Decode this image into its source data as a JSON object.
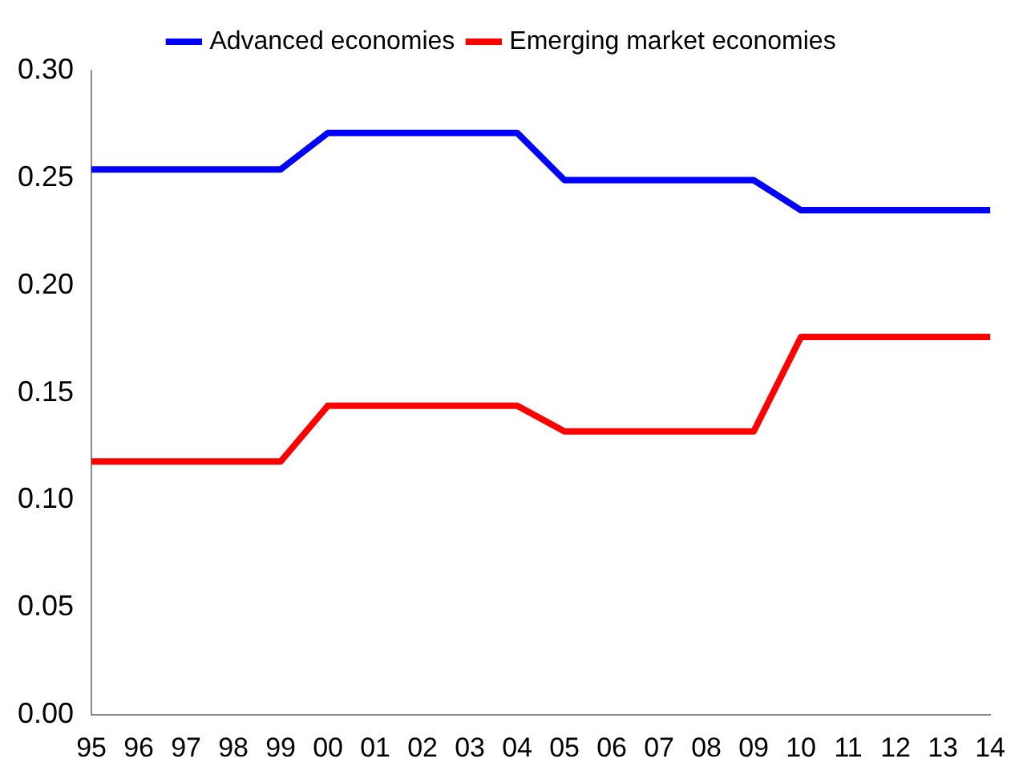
{
  "chart_data": {
    "type": "line",
    "categories": [
      "95",
      "96",
      "97",
      "98",
      "99",
      "00",
      "01",
      "02",
      "03",
      "04",
      "05",
      "06",
      "07",
      "08",
      "09",
      "10",
      "11",
      "12",
      "13",
      "14"
    ],
    "series": [
      {
        "name": "Advanced economies",
        "color": "#0000ff",
        "values": [
          0.254,
          0.254,
          0.254,
          0.254,
          0.254,
          0.271,
          0.271,
          0.271,
          0.271,
          0.271,
          0.249,
          0.249,
          0.249,
          0.249,
          0.249,
          0.235,
          0.235,
          0.235,
          0.235,
          0.235
        ]
      },
      {
        "name": "Emerging market economies",
        "color": "#ff0000",
        "values": [
          0.118,
          0.118,
          0.118,
          0.118,
          0.118,
          0.144,
          0.144,
          0.144,
          0.144,
          0.144,
          0.132,
          0.132,
          0.132,
          0.132,
          0.132,
          0.176,
          0.176,
          0.176,
          0.176,
          0.176
        ]
      }
    ],
    "ylim": [
      0,
      0.3
    ],
    "yticks": [
      {
        "value": 0,
        "label": "0.00"
      },
      {
        "value": 0.05,
        "label": "0.05"
      },
      {
        "value": 0.1,
        "label": "0.10"
      },
      {
        "value": 0.15,
        "label": "0.15"
      },
      {
        "value": 0.2,
        "label": "0.20"
      },
      {
        "value": 0.25,
        "label": "0.25"
      },
      {
        "value": 0.3,
        "label": "0.30"
      }
    ],
    "grid": false,
    "legend": "top",
    "marker": "none",
    "line_style": "solid"
  }
}
